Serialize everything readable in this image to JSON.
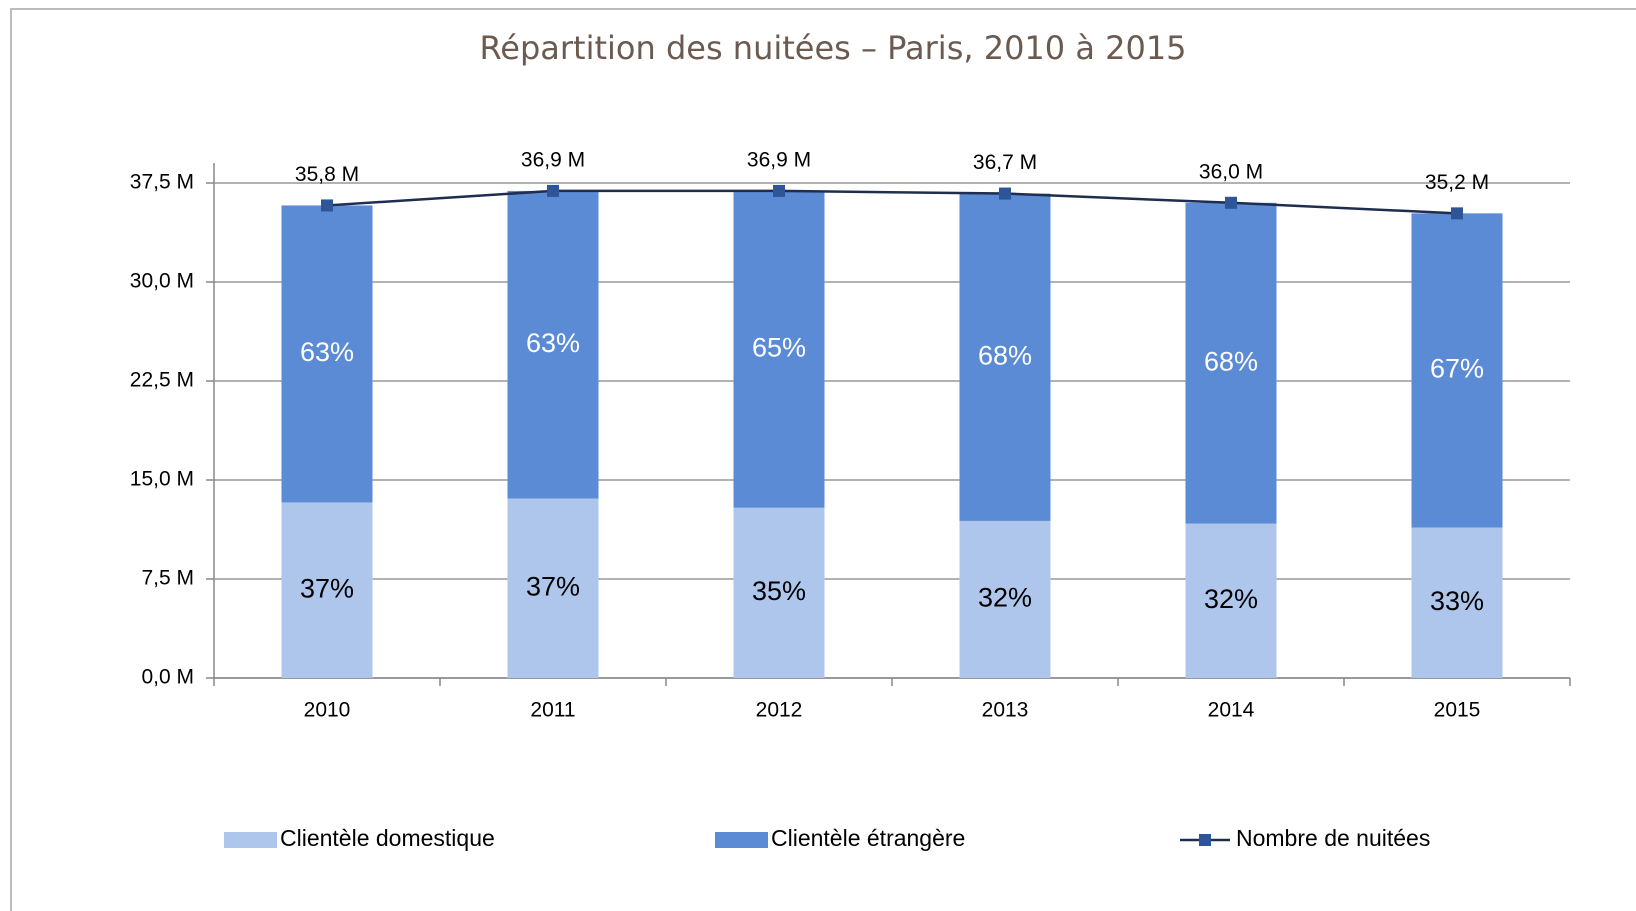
{
  "chart_data": {
    "type": "bar",
    "stacked": true,
    "title": "Répartition des nuitées – Paris, 2010 à 2015",
    "categories": [
      "2010",
      "2011",
      "2012",
      "2013",
      "2014",
      "2015"
    ],
    "series": [
      {
        "name": "Clientèle domestique",
        "color": "#aec6ec",
        "label_color": "#000000",
        "values": [
          13.3,
          13.6,
          12.9,
          11.9,
          11.7,
          11.4
        ],
        "labels": [
          "37%",
          "37%",
          "35%",
          "32%",
          "32%",
          "33%"
        ]
      },
      {
        "name": "Clientèle étrangère",
        "color": "#5b8bd5",
        "label_color": "#ffffff",
        "values": [
          22.5,
          23.3,
          24.0,
          24.8,
          24.3,
          23.8
        ],
        "labels": [
          "63%",
          "63%",
          "65%",
          "68%",
          "68%",
          "67%"
        ]
      },
      {
        "name": "Nombre de nuitées",
        "type": "line",
        "color": "#1f2d4e",
        "marker_color": "#2e5597",
        "values": [
          35.8,
          36.9,
          36.9,
          36.7,
          36.0,
          35.2
        ],
        "value_labels": [
          "35,8 M",
          "36,9 M",
          "36,9 M",
          "36,7 M",
          "36,0 M",
          "35,2 M"
        ]
      }
    ],
    "ylim": [
      0,
      37.5
    ],
    "yticks": [
      {
        "value": 0,
        "label": "0,0 M"
      },
      {
        "value": 7.5,
        "label": "7,5 M"
      },
      {
        "value": 15,
        "label": "15,0 M"
      },
      {
        "value": 22.5,
        "label": "22,5 M"
      },
      {
        "value": 30,
        "label": "30,0 M"
      },
      {
        "value": 37.5,
        "label": "37,5 M"
      }
    ],
    "grid": true,
    "legend": "bottom"
  }
}
